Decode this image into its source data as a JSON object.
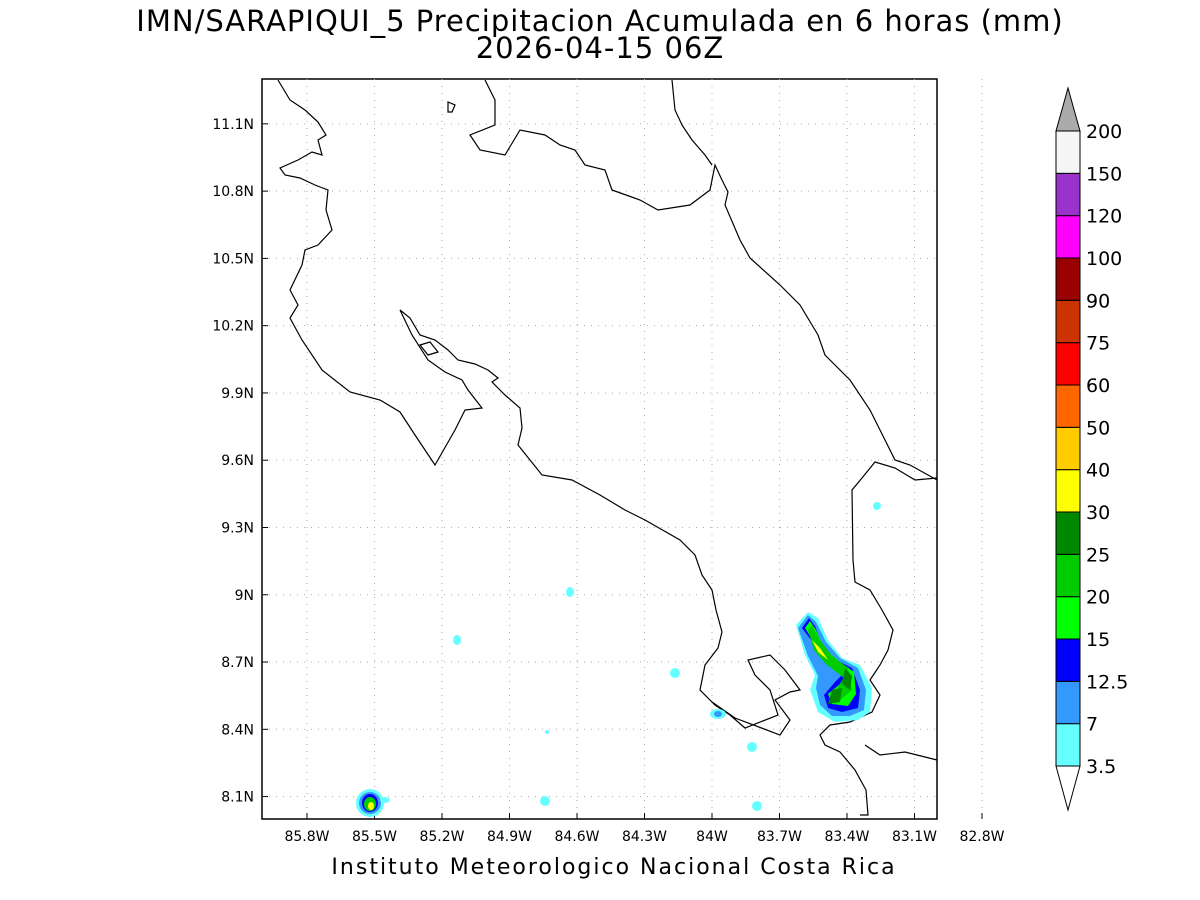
{
  "title_line1": "IMN/SARAPIQUI_5 Precipitacion Acumulada en 6 horas (mm)",
  "title_line2": "2026-04-15 06Z",
  "footer": "Instituto Meteorologico Nacional Costa Rica",
  "map": {
    "lon_range": [
      -86.0,
      -83.0
    ],
    "lat_range": [
      8.0,
      11.3
    ],
    "x_ticks": [
      "85.8W",
      "85.5W",
      "85.2W",
      "84.9W",
      "84.6W",
      "84.3W",
      "84W",
      "83.7W",
      "83.4W",
      "83.1W",
      "82.8W"
    ],
    "y_ticks": [
      "11.1N",
      "10.8N",
      "10.5N",
      "10.2N",
      "9.9N",
      "9.6N",
      "9.3N",
      "9N",
      "8.7N",
      "8.4N",
      "8.1N"
    ],
    "grid": true
  },
  "colorbar": {
    "labels": [
      "3.5",
      "7",
      "12.5",
      "15",
      "20",
      "25",
      "30",
      "40",
      "50",
      "60",
      "75",
      "90",
      "100",
      "120",
      "150",
      "200"
    ],
    "colors": [
      "#66ffff",
      "#3399ff",
      "#0000ff",
      "#00ff00",
      "#00cc00",
      "#008800",
      "#ffff00",
      "#ffcc00",
      "#ff6600",
      "#ff0000",
      "#cc3300",
      "#990000",
      "#ff00ff",
      "#9933cc",
      "#f5f5f5",
      "#aaaaaa"
    ],
    "under_color": "#ffffff",
    "over_color": "#aaaaaa"
  }
}
